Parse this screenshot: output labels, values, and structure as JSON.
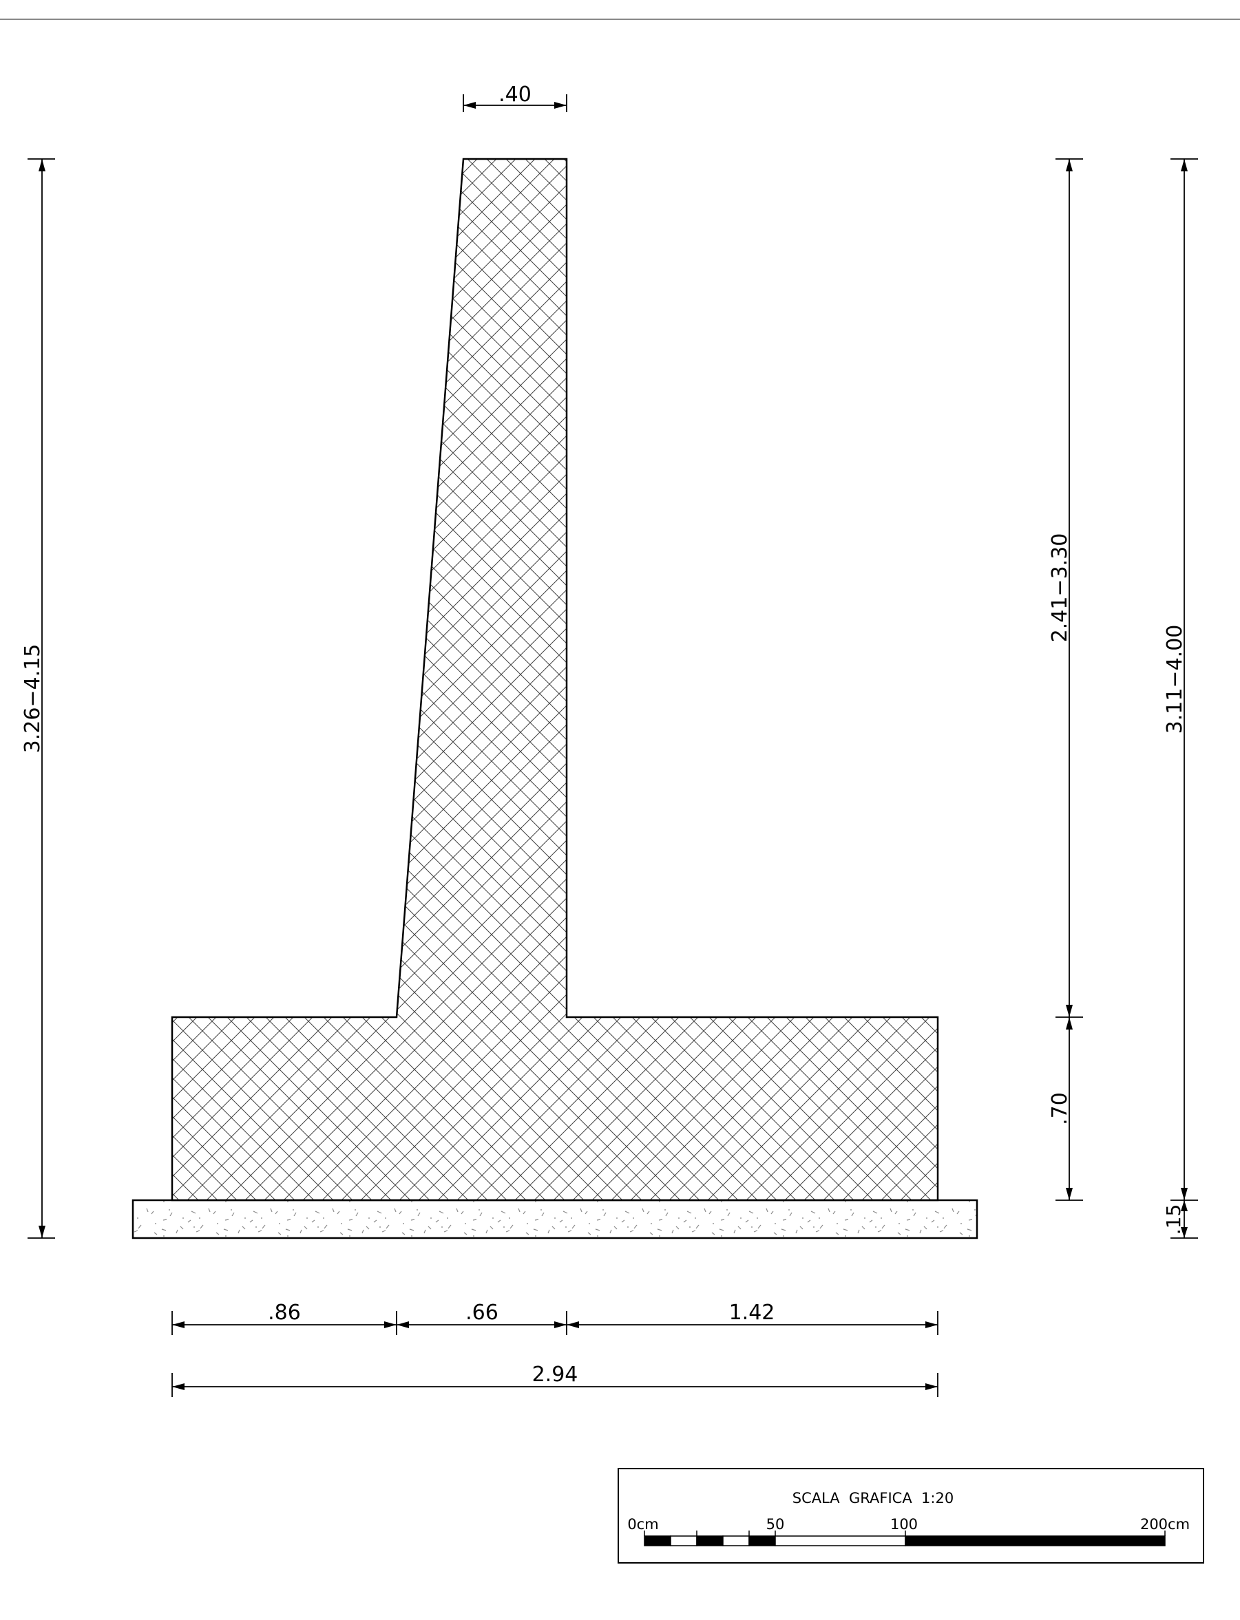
{
  "dimensions": {
    "top_stem_width": ".40",
    "left_total_height": "3.26−4.15",
    "right_stem_height": "2.41−3.30",
    "right_total_height": "3.11−4.00",
    "footing_height": ".70",
    "lean_concrete_height": ".15",
    "toe_width": ".86",
    "stem_base_width": ".66",
    "heel_width": "1.42",
    "base_total_width": "2.94"
  },
  "scale_bar": {
    "title": "SCALA  GRAFICA  1:20",
    "label_0": "0cm",
    "label_50": "50",
    "label_100": "100",
    "label_200": "200cm"
  }
}
